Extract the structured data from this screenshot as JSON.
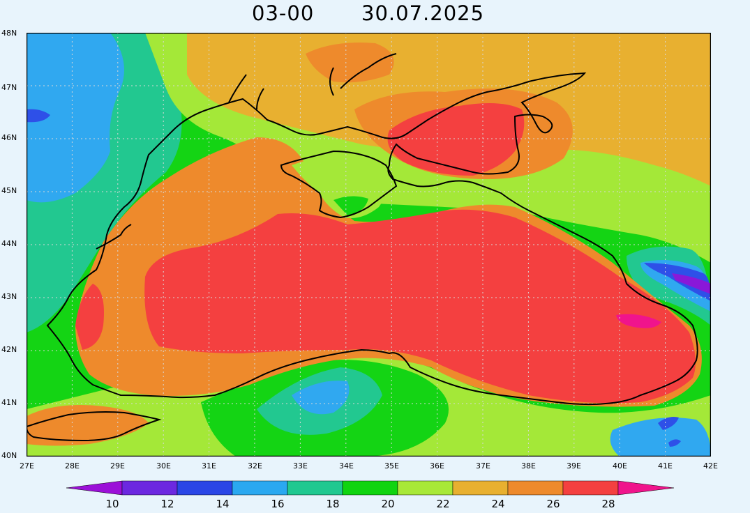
{
  "header": {
    "time": "03-00",
    "date": "30.07.2025"
  },
  "axes": {
    "lat_labels": [
      "40N",
      "41N",
      "42N",
      "43N",
      "44N",
      "45N",
      "46N",
      "47N",
      "48N"
    ],
    "lon_labels": [
      "27E",
      "28E",
      "29E",
      "30E",
      "31E",
      "32E",
      "33E",
      "34E",
      "35E",
      "36E",
      "37E",
      "38E",
      "39E",
      "40E",
      "41E",
      "42E"
    ],
    "lat_range": [
      40,
      48
    ],
    "lon_range": [
      27,
      42
    ],
    "grid": true
  },
  "colorbar": {
    "labels": [
      "10",
      "12",
      "14",
      "16",
      "18",
      "20",
      "22",
      "24",
      "26",
      "28"
    ],
    "colors": [
      "#9b10d8",
      "#6c28e0",
      "#2a46e6",
      "#2aa8f0",
      "#20c890",
      "#10d410",
      "#a8e838",
      "#e8b030",
      "#ee8a2c",
      "#f44040",
      "#f0148c"
    ]
  },
  "palette": {
    "purple": "#8a18d8",
    "blue": "#2e50e8",
    "lightblue": "#30a8f0",
    "teal": "#22c890",
    "green": "#14d414",
    "lime": "#a4e838",
    "gold": "#e8b030",
    "orange": "#ee8a2c",
    "red": "#f44040",
    "magenta": "#f0148c",
    "coast": "#000000"
  }
}
